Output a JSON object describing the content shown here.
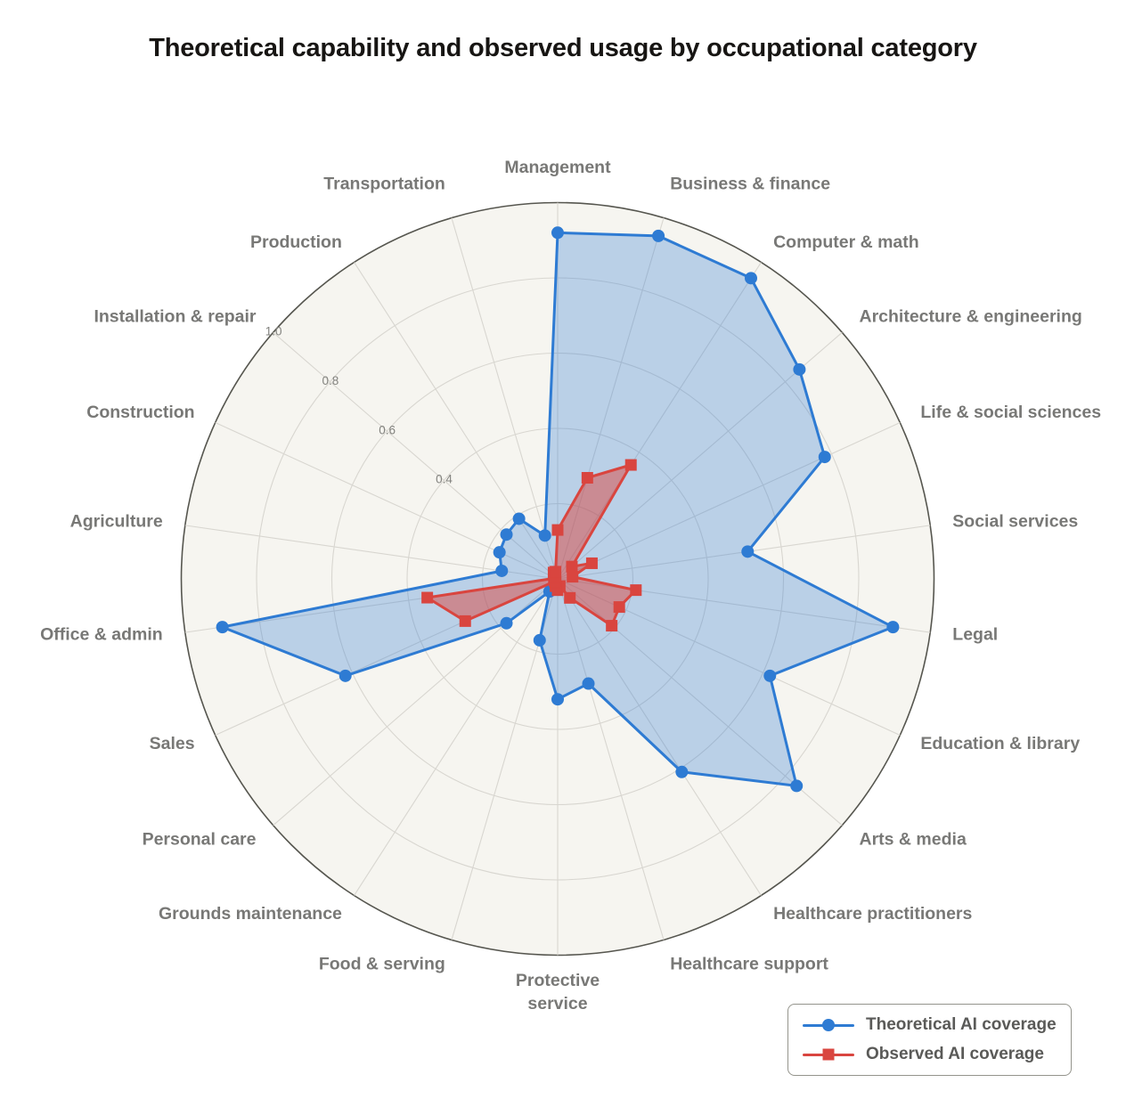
{
  "title": "Theoretical capability and observed usage by occupational category",
  "chart_data": {
    "type": "radar",
    "start_angle": "top",
    "direction": "clockwise",
    "grid": true,
    "legend_position": "bottom-right",
    "categories": [
      "Management",
      "Business & finance",
      "Computer & math",
      "Architecture & engineering",
      "Life & social sciences",
      "Social services",
      "Legal",
      "Education & library",
      "Arts & media",
      "Healthcare practitioners",
      "Healthcare support",
      "Protective\nservice",
      "Food & serving",
      "Grounds maintenance",
      "Personal care",
      "Sales",
      "Office & admin",
      "Agriculture",
      "Construction",
      "Installation & repair",
      "Production",
      "Transportation"
    ],
    "series": [
      {
        "name": "Theoretical AI coverage",
        "marker": "circle",
        "color": "#2e7bd3",
        "fill_opacity": 0.3,
        "values": [
          0.92,
          0.95,
          0.95,
          0.85,
          0.78,
          0.51,
          0.9,
          0.62,
          0.84,
          0.61,
          0.29,
          0.32,
          0.17,
          0.04,
          0.18,
          0.62,
          0.9,
          0.15,
          0.17,
          0.18,
          0.19,
          0.12
        ]
      },
      {
        "name": "Observed AI coverage",
        "marker": "square",
        "color": "#d9453f",
        "fill_opacity": 0.5,
        "values": [
          0.13,
          0.28,
          0.36,
          0.05,
          0.1,
          0.04,
          0.21,
          0.18,
          0.19,
          0.06,
          0.02,
          0.03,
          0.02,
          0.01,
          0.01,
          0.27,
          0.35,
          0.01,
          0.01,
          0.01,
          0.02,
          0.02
        ]
      }
    ],
    "radial_axis": {
      "min": 0,
      "max": 1.0,
      "grid_interval": 0.2,
      "tick_values": [
        0.4,
        0.6,
        0.8,
        1.0
      ],
      "tick_labels": [
        "0.4",
        "0.6",
        "0.8",
        "1.0"
      ]
    },
    "colors": {
      "page_background": "#ffffff",
      "plot_background": "#f6f5f0",
      "grid_line": "#d8d6d0",
      "outer_ring": "#56564f",
      "category_label": "#787876",
      "tick_label": "#82827e",
      "title": "#171513"
    }
  }
}
